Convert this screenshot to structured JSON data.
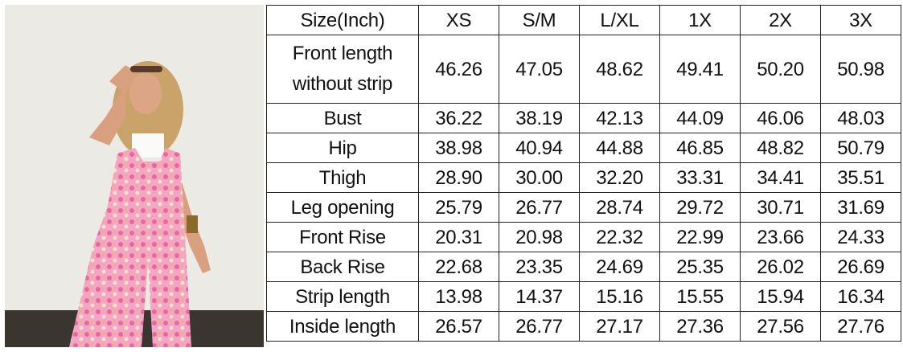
{
  "photo": {
    "description_icon": "model-photo"
  },
  "size_table": {
    "header": [
      "Size(Inch)",
      "XS",
      "S/M",
      "L/XL",
      "1X",
      "2X",
      "3X"
    ],
    "rows": [
      {
        "label": "Front length without strip",
        "label_lines": [
          "Front length",
          "without strip"
        ],
        "values": [
          "46.26",
          "47.05",
          "48.62",
          "49.41",
          "50.20",
          "50.98"
        ]
      },
      {
        "label": "Bust",
        "values": [
          "36.22",
          "38.19",
          "42.13",
          "44.09",
          "46.06",
          "48.03"
        ]
      },
      {
        "label": "Hip",
        "values": [
          "38.98",
          "40.94",
          "44.88",
          "46.85",
          "48.82",
          "50.79"
        ]
      },
      {
        "label": "Thigh",
        "values": [
          "28.90",
          "30.00",
          "32.20",
          "33.31",
          "34.41",
          "35.51"
        ]
      },
      {
        "label": "Leg opening",
        "values": [
          "25.79",
          "26.77",
          "28.74",
          "29.72",
          "30.71",
          "31.69"
        ]
      },
      {
        "label": "Front Rise",
        "values": [
          "20.31",
          "20.98",
          "22.32",
          "22.99",
          "23.66",
          "24.33"
        ]
      },
      {
        "label": "Back Rise",
        "values": [
          "22.68",
          "23.35",
          "24.69",
          "25.35",
          "26.02",
          "26.69"
        ]
      },
      {
        "label": "Strip length",
        "values": [
          "13.98",
          "14.37",
          "15.16",
          "15.55",
          "15.94",
          "16.34"
        ]
      },
      {
        "label": "Inside length",
        "values": [
          "26.57",
          "26.77",
          "27.17",
          "27.36",
          "27.56",
          "27.76"
        ]
      }
    ]
  }
}
